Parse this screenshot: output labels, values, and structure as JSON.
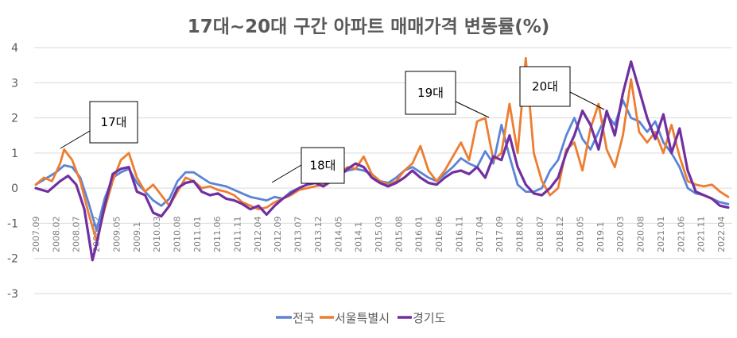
{
  "chart_data": {
    "type": "line",
    "title": "17대~20대 구간 아파트 매매가격 변동률(%)",
    "xlabel": "",
    "ylabel": "",
    "ylim": [
      -3,
      4
    ],
    "yticks": [
      4,
      3,
      2,
      1,
      0,
      -1,
      -2,
      -3
    ],
    "grid": true,
    "legend": "bottom",
    "x_tick_labels": [
      "2007.09",
      "2008.02",
      "2008.07",
      "2008.12",
      "2009.05",
      "2009.1",
      "2010.03",
      "2010.08",
      "2011.01",
      "2011.06",
      "2011.11",
      "2012.04",
      "2012.09",
      "2013.07",
      "2013.12",
      "2014.05",
      "2014.1",
      "2015.03",
      "2015.08",
      "2016.01",
      "2016.06",
      "2016.11",
      "2017.04",
      "2017.09",
      "2018.02",
      "2018.07",
      "2018.12",
      "2019.05",
      "2019.1",
      "2020.03",
      "2020.08",
      "2021.01",
      "2021.06",
      "2021.11",
      "2022.04"
    ],
    "series": [
      {
        "name": "전국",
        "color": "#5b84d6",
        "values": [
          [
            0,
            0.1
          ],
          [
            5,
            0.45
          ],
          [
            7,
            0.65
          ],
          [
            9,
            0.6
          ],
          [
            11,
            0.3
          ],
          [
            13,
            -0.4
          ],
          [
            15,
            -1.2
          ],
          [
            17,
            -0.3
          ],
          [
            19,
            0.3
          ],
          [
            21,
            0.45
          ],
          [
            23,
            0.55
          ],
          [
            25,
            0.15
          ],
          [
            27,
            -0.1
          ],
          [
            29,
            -0.35
          ],
          [
            31,
            -0.5
          ],
          [
            33,
            -0.3
          ],
          [
            35,
            0.2
          ],
          [
            37,
            0.45
          ],
          [
            39,
            0.45
          ],
          [
            41,
            0.3
          ],
          [
            43,
            0.15
          ],
          [
            45,
            0.1
          ],
          [
            47,
            0.05
          ],
          [
            49,
            -0.05
          ],
          [
            51,
            -0.15
          ],
          [
            53,
            -0.25
          ],
          [
            55,
            -0.3
          ],
          [
            57,
            -0.35
          ],
          [
            59,
            -0.25
          ],
          [
            61,
            -0.3
          ],
          [
            63,
            -0.1
          ],
          [
            65,
            0.0
          ],
          [
            67,
            0.1
          ],
          [
            69,
            0.15
          ],
          [
            71,
            0.2
          ],
          [
            73,
            0.3
          ],
          [
            75,
            0.4
          ],
          [
            77,
            0.5
          ],
          [
            79,
            0.55
          ],
          [
            81,
            0.5
          ],
          [
            83,
            0.4
          ],
          [
            85,
            0.2
          ],
          [
            87,
            0.15
          ],
          [
            89,
            0.3
          ],
          [
            91,
            0.5
          ],
          [
            93,
            0.6
          ],
          [
            95,
            0.45
          ],
          [
            97,
            0.3
          ],
          [
            99,
            0.2
          ],
          [
            101,
            0.4
          ],
          [
            103,
            0.6
          ],
          [
            105,
            0.85
          ],
          [
            107,
            0.7
          ],
          [
            109,
            0.6
          ],
          [
            111,
            1.05
          ],
          [
            113,
            0.7
          ],
          [
            115,
            1.8
          ],
          [
            117,
            0.9
          ],
          [
            119,
            0.1
          ],
          [
            121,
            -0.1
          ],
          [
            123,
            -0.1
          ],
          [
            125,
            0.0
          ],
          [
            127,
            0.5
          ],
          [
            129,
            0.8
          ],
          [
            131,
            1.5
          ],
          [
            133,
            2.0
          ],
          [
            135,
            1.4
          ],
          [
            137,
            1.1
          ],
          [
            139,
            1.6
          ],
          [
            141,
            2.1
          ],
          [
            143,
            1.8
          ],
          [
            145,
            2.5
          ],
          [
            147,
            2.0
          ],
          [
            149,
            1.9
          ],
          [
            151,
            1.6
          ],
          [
            153,
            1.9
          ],
          [
            155,
            1.3
          ],
          [
            157,
            1.0
          ],
          [
            159,
            0.6
          ],
          [
            161,
            0.0
          ],
          [
            163,
            -0.15
          ],
          [
            165,
            -0.2
          ],
          [
            167,
            -0.3
          ],
          [
            169,
            -0.4
          ],
          [
            171,
            -0.45
          ]
        ]
      },
      {
        "name": "서울특별시",
        "color": "#ed7d31",
        "values": [
          [
            0,
            0.1
          ],
          [
            2,
            0.3
          ],
          [
            4,
            0.2
          ],
          [
            6,
            0.7
          ],
          [
            7,
            1.1
          ],
          [
            9,
            0.8
          ],
          [
            11,
            0.2
          ],
          [
            13,
            -0.7
          ],
          [
            15,
            -1.5
          ],
          [
            17,
            -0.6
          ],
          [
            19,
            0.2
          ],
          [
            21,
            0.8
          ],
          [
            23,
            1.0
          ],
          [
            25,
            0.3
          ],
          [
            27,
            -0.1
          ],
          [
            29,
            0.1
          ],
          [
            31,
            -0.2
          ],
          [
            33,
            -0.5
          ],
          [
            35,
            -0.1
          ],
          [
            37,
            0.3
          ],
          [
            39,
            0.2
          ],
          [
            41,
            0.0
          ],
          [
            43,
            0.05
          ],
          [
            45,
            -0.05
          ],
          [
            47,
            -0.1
          ],
          [
            49,
            -0.2
          ],
          [
            51,
            -0.4
          ],
          [
            53,
            -0.5
          ],
          [
            55,
            -0.6
          ],
          [
            57,
            -0.55
          ],
          [
            59,
            -0.4
          ],
          [
            61,
            -0.3
          ],
          [
            63,
            -0.2
          ],
          [
            65,
            -0.05
          ],
          [
            67,
            0.0
          ],
          [
            69,
            0.05
          ],
          [
            71,
            0.1
          ],
          [
            73,
            0.2
          ],
          [
            75,
            0.4
          ],
          [
            77,
            0.6
          ],
          [
            79,
            0.55
          ],
          [
            81,
            0.9
          ],
          [
            83,
            0.4
          ],
          [
            85,
            0.2
          ],
          [
            87,
            0.1
          ],
          [
            89,
            0.2
          ],
          [
            91,
            0.5
          ],
          [
            93,
            0.7
          ],
          [
            95,
            1.2
          ],
          [
            97,
            0.5
          ],
          [
            99,
            0.2
          ],
          [
            101,
            0.5
          ],
          [
            103,
            0.9
          ],
          [
            105,
            1.3
          ],
          [
            107,
            0.8
          ],
          [
            109,
            1.9
          ],
          [
            111,
            2.0
          ],
          [
            113,
            0.8
          ],
          [
            115,
            1.0
          ],
          [
            117,
            2.4
          ],
          [
            119,
            1.0
          ],
          [
            121,
            3.7
          ],
          [
            123,
            1.0
          ],
          [
            125,
            0.2
          ],
          [
            127,
            -0.2
          ],
          [
            129,
            0.0
          ],
          [
            131,
            1.1
          ],
          [
            133,
            1.3
          ],
          [
            135,
            0.5
          ],
          [
            137,
            1.7
          ],
          [
            139,
            2.4
          ],
          [
            141,
            1.1
          ],
          [
            143,
            0.6
          ],
          [
            145,
            1.5
          ],
          [
            147,
            3.1
          ],
          [
            149,
            1.6
          ],
          [
            151,
            1.3
          ],
          [
            153,
            1.6
          ],
          [
            155,
            1.0
          ],
          [
            157,
            1.8
          ],
          [
            159,
            0.9
          ],
          [
            161,
            0.2
          ],
          [
            163,
            0.1
          ],
          [
            165,
            0.05
          ],
          [
            167,
            0.1
          ],
          [
            169,
            -0.1
          ],
          [
            171,
            -0.25
          ]
        ]
      },
      {
        "name": "경기도",
        "color": "#7030a0",
        "values": [
          [
            0,
            0.0
          ],
          [
            3,
            -0.1
          ],
          [
            6,
            0.2
          ],
          [
            8,
            0.35
          ],
          [
            10,
            0.1
          ],
          [
            12,
            -0.6
          ],
          [
            14,
            -2.05
          ],
          [
            15,
            -1.6
          ],
          [
            17,
            -0.5
          ],
          [
            19,
            0.4
          ],
          [
            21,
            0.55
          ],
          [
            23,
            0.6
          ],
          [
            25,
            -0.1
          ],
          [
            27,
            -0.2
          ],
          [
            29,
            -0.7
          ],
          [
            31,
            -0.8
          ],
          [
            33,
            -0.5
          ],
          [
            35,
            0.0
          ],
          [
            37,
            0.15
          ],
          [
            39,
            0.2
          ],
          [
            41,
            -0.1
          ],
          [
            43,
            -0.2
          ],
          [
            45,
            -0.15
          ],
          [
            47,
            -0.3
          ],
          [
            49,
            -0.35
          ],
          [
            51,
            -0.45
          ],
          [
            53,
            -0.6
          ],
          [
            55,
            -0.5
          ],
          [
            57,
            -0.75
          ],
          [
            59,
            -0.5
          ],
          [
            61,
            -0.3
          ],
          [
            63,
            -0.15
          ],
          [
            65,
            0.0
          ],
          [
            67,
            0.1
          ],
          [
            69,
            0.15
          ],
          [
            71,
            0.05
          ],
          [
            73,
            0.2
          ],
          [
            75,
            0.35
          ],
          [
            77,
            0.55
          ],
          [
            79,
            0.7
          ],
          [
            81,
            0.6
          ],
          [
            83,
            0.3
          ],
          [
            85,
            0.15
          ],
          [
            87,
            0.05
          ],
          [
            89,
            0.15
          ],
          [
            91,
            0.3
          ],
          [
            93,
            0.5
          ],
          [
            95,
            0.3
          ],
          [
            97,
            0.15
          ],
          [
            99,
            0.1
          ],
          [
            101,
            0.3
          ],
          [
            103,
            0.45
          ],
          [
            105,
            0.5
          ],
          [
            107,
            0.4
          ],
          [
            109,
            0.6
          ],
          [
            111,
            0.3
          ],
          [
            113,
            0.9
          ],
          [
            115,
            0.8
          ],
          [
            117,
            1.5
          ],
          [
            119,
            0.6
          ],
          [
            121,
            0.1
          ],
          [
            123,
            -0.15
          ],
          [
            125,
            -0.2
          ],
          [
            127,
            0.0
          ],
          [
            129,
            0.3
          ],
          [
            131,
            1.0
          ],
          [
            133,
            1.5
          ],
          [
            135,
            2.2
          ],
          [
            137,
            1.8
          ],
          [
            139,
            1.1
          ],
          [
            141,
            2.2
          ],
          [
            143,
            1.5
          ],
          [
            145,
            2.7
          ],
          [
            147,
            3.6
          ],
          [
            149,
            2.8
          ],
          [
            151,
            2.0
          ],
          [
            153,
            1.4
          ],
          [
            155,
            2.1
          ],
          [
            157,
            1.0
          ],
          [
            159,
            1.7
          ],
          [
            161,
            0.5
          ],
          [
            163,
            -0.1
          ],
          [
            165,
            -0.2
          ],
          [
            167,
            -0.3
          ],
          [
            169,
            -0.5
          ],
          [
            171,
            -0.55
          ]
        ]
      }
    ],
    "annotations": [
      {
        "label": "17대"
      },
      {
        "label": "18대"
      },
      {
        "label": "19대"
      },
      {
        "label": "20대"
      }
    ]
  }
}
